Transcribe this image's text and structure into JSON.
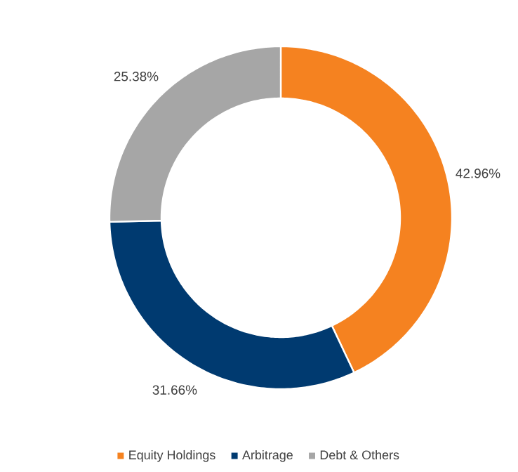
{
  "chart_data": {
    "type": "donut",
    "categories": [
      "Equity Holdings",
      "Arbitrage",
      "Debt & Others"
    ],
    "values": [
      42.96,
      31.66,
      25.38
    ],
    "colors": [
      "#f58220",
      "#003a70",
      "#a6a6a6"
    ],
    "value_labels": [
      "42.96%",
      "31.66%",
      "25.38%"
    ],
    "legend": "bottom"
  }
}
